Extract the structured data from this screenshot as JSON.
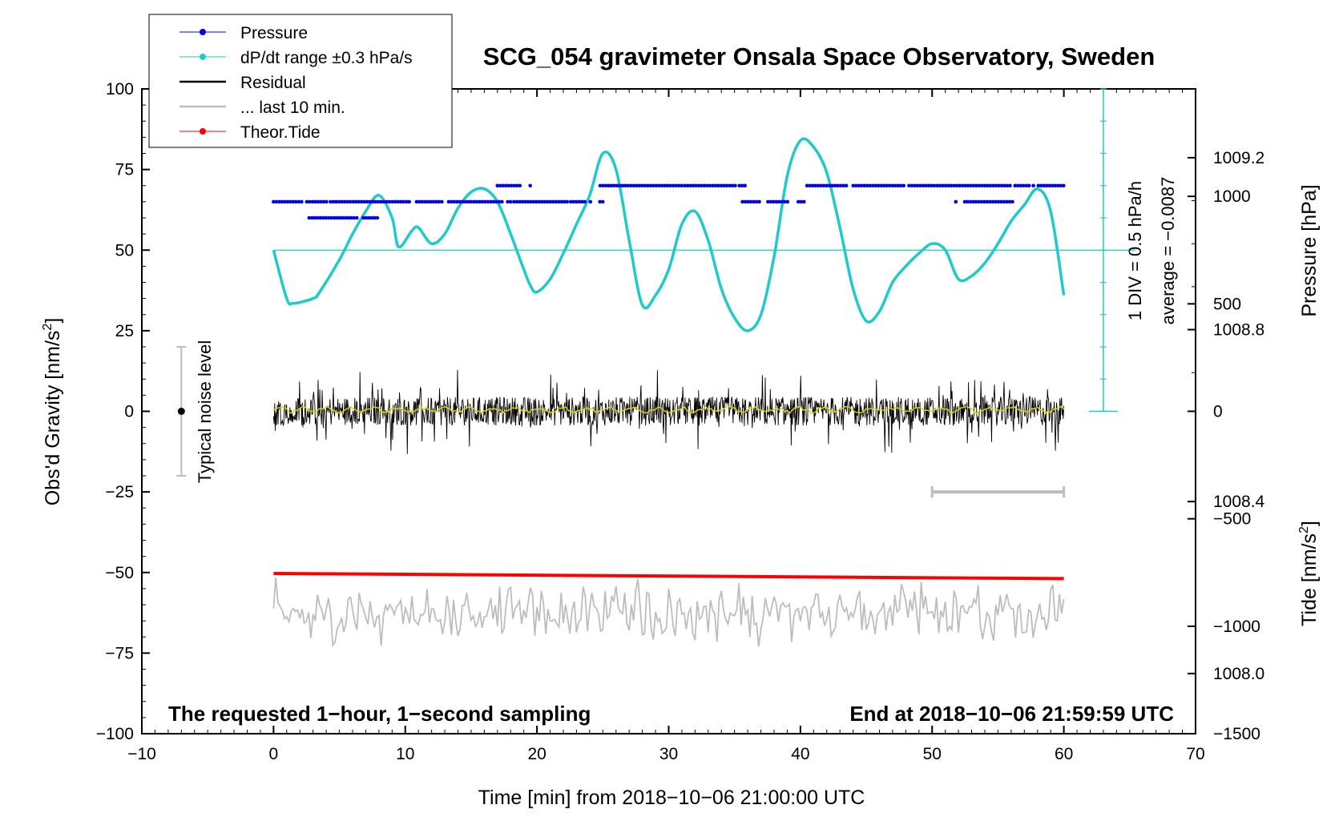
{
  "chart_data": {
    "type": "line",
    "title": "SCG_054 gravimeter Onsala Space Observatory, Sweden",
    "xlabel": "Time [min] from 2018−10−06 21:00:00 UTC",
    "ylabel_left": "Obs'd Gravity [nm/s",
    "ylabel_left_sup": "2",
    "ylabel_left_end": "]",
    "ylabel_right_top": "Pressure [hPa]",
    "ylabel_right_bottom": "Tide [nm/s",
    "ylabel_right_bottom_sup": "2",
    "ylabel_right_bottom_end": "]",
    "xlim": [
      -10,
      70
    ],
    "ylim": [
      -100,
      100
    ],
    "x_ticks": [
      -10,
      0,
      10,
      20,
      30,
      40,
      50,
      60,
      70
    ],
    "x_tick_labels": [
      "−10",
      "0",
      "10",
      "20",
      "30",
      "40",
      "50",
      "60",
      "70"
    ],
    "y_ticks": [
      100,
      75,
      50,
      25,
      0,
      -25,
      -50,
      -75,
      -100
    ],
    "y_tick_labels": [
      "100",
      "75",
      "50",
      "25",
      "0",
      "−25",
      "−50",
      "−75",
      "−100"
    ],
    "pressure_axis": {
      "ticks": [
        1009.2,
        1008.8,
        1008.4,
        1008.0
      ],
      "tick_labels": [
        "1009.2",
        "1008.8",
        "1008.4",
        "1008.0"
      ],
      "range_hpa": [
        1007.86,
        1009.36
      ]
    },
    "tide_axis": {
      "ticks": [
        1000,
        500,
        0,
        -500,
        -1000,
        -1500
      ],
      "tick_labels": [
        "1000",
        "500",
        "0",
        "−500",
        "−1000",
        "−1500"
      ],
      "range": [
        -1500,
        1500
      ]
    },
    "legend": {
      "placement": "top-left",
      "entries": [
        {
          "label": "Pressure",
          "color": "#0000dd"
        },
        {
          "label": "dP/dt range ±0.3 hPa/s",
          "color": "#1ecaca"
        },
        {
          "label": "Residual",
          "color": "#000000"
        },
        {
          "label": "... last 10 min.",
          "color": "#bdbdbd"
        },
        {
          "label": "Theor.Tide",
          "color": "#ff0000"
        }
      ]
    },
    "series": [
      {
        "name": "Pressure",
        "color": "#0000dd",
        "segments": [
          {
            "y": 65,
            "x": [
              [
                0,
                25
              ]
            ]
          },
          {
            "y": 60,
            "x": [
              [
                2.7,
                8
              ]
            ]
          },
          {
            "y": 70,
            "x": [
              [
                17,
                19.5
              ]
            ]
          },
          {
            "y": 70,
            "x": [
              [
                24.8,
                35.8
              ]
            ]
          },
          {
            "y": 65,
            "x": [
              [
                35.6,
                40.5
              ]
            ]
          },
          {
            "y": 70,
            "x": [
              [
                40.5,
                56
              ]
            ]
          },
          {
            "y": 65,
            "x": [
              [
                51.8,
                56.3
              ]
            ]
          },
          {
            "y": 70,
            "x": [
              [
                56.3,
                60
              ]
            ]
          }
        ]
      },
      {
        "name": "dP/dt range ±0.3 hPa/s (smoothed pressure)",
        "color": "#1ecaca",
        "x": [
          0,
          1,
          1.5,
          3,
          3.5,
          5,
          6,
          7,
          8,
          9,
          9.5,
          10.5,
          11,
          12,
          13,
          14,
          15,
          16,
          17,
          18,
          19,
          19.5,
          20,
          21,
          22,
          23,
          24,
          25,
          26,
          27,
          28,
          29,
          30,
          31,
          32,
          33,
          34,
          35,
          36,
          37,
          38,
          39,
          40,
          41,
          42,
          43,
          44,
          45,
          46,
          47,
          48,
          49,
          50,
          51,
          52,
          53,
          54,
          55,
          56,
          57,
          58,
          59,
          60
        ],
        "y": [
          50,
          35,
          33.5,
          35,
          37,
          47,
          55,
          62,
          67,
          60,
          51,
          56,
          57,
          52,
          55,
          63,
          68,
          69,
          65,
          55,
          44,
          39,
          37,
          41,
          49,
          58,
          67,
          80,
          75,
          53,
          33,
          36,
          44,
          58,
          62,
          53,
          38,
          29,
          25,
          30,
          48,
          73,
          84,
          82,
          74,
          57,
          38,
          28,
          31,
          40,
          45,
          49,
          52,
          50,
          41,
          42,
          46,
          52,
          59,
          64,
          69,
          62,
          36
        ]
      },
      {
        "name": "Residual",
        "color": "#000000",
        "x_range": [
          0,
          60
        ],
        "y_center": 0,
        "y_extent": [
          -15,
          15
        ]
      },
      {
        "name": "... last 10 min.",
        "color": "#bdbdbd",
        "x_range": [
          0,
          60
        ],
        "y_center": -63,
        "y_extent": [
          -73,
          -50
        ]
      },
      {
        "name": "Theor.Tide",
        "color": "#ff0000",
        "x": [
          0,
          60
        ],
        "y": [
          -50.3,
          -51.9
        ]
      },
      {
        "name": "Residual (smoothed)",
        "color": "#d8d800",
        "x_range": [
          0,
          60
        ],
        "y_center": 0.5
      }
    ],
    "pressure_scale_bar": {
      "label_div": "1 DIV = 0.5 hPa/h",
      "label_avg": "average = −0.0087",
      "x": 63,
      "y_range": [
        0,
        100
      ],
      "reference_y": 50
    },
    "noise_bar": {
      "label": "Typical noise level",
      "x": -7,
      "y_range": [
        -20,
        20
      ]
    },
    "ten_min_bracket": {
      "x_range": [
        50,
        60
      ],
      "y": -25
    },
    "annotation_left": "The requested 1−hour, 1−second sampling",
    "annotation_right": "End at 2018−10−06 21:59:59 UTC"
  }
}
